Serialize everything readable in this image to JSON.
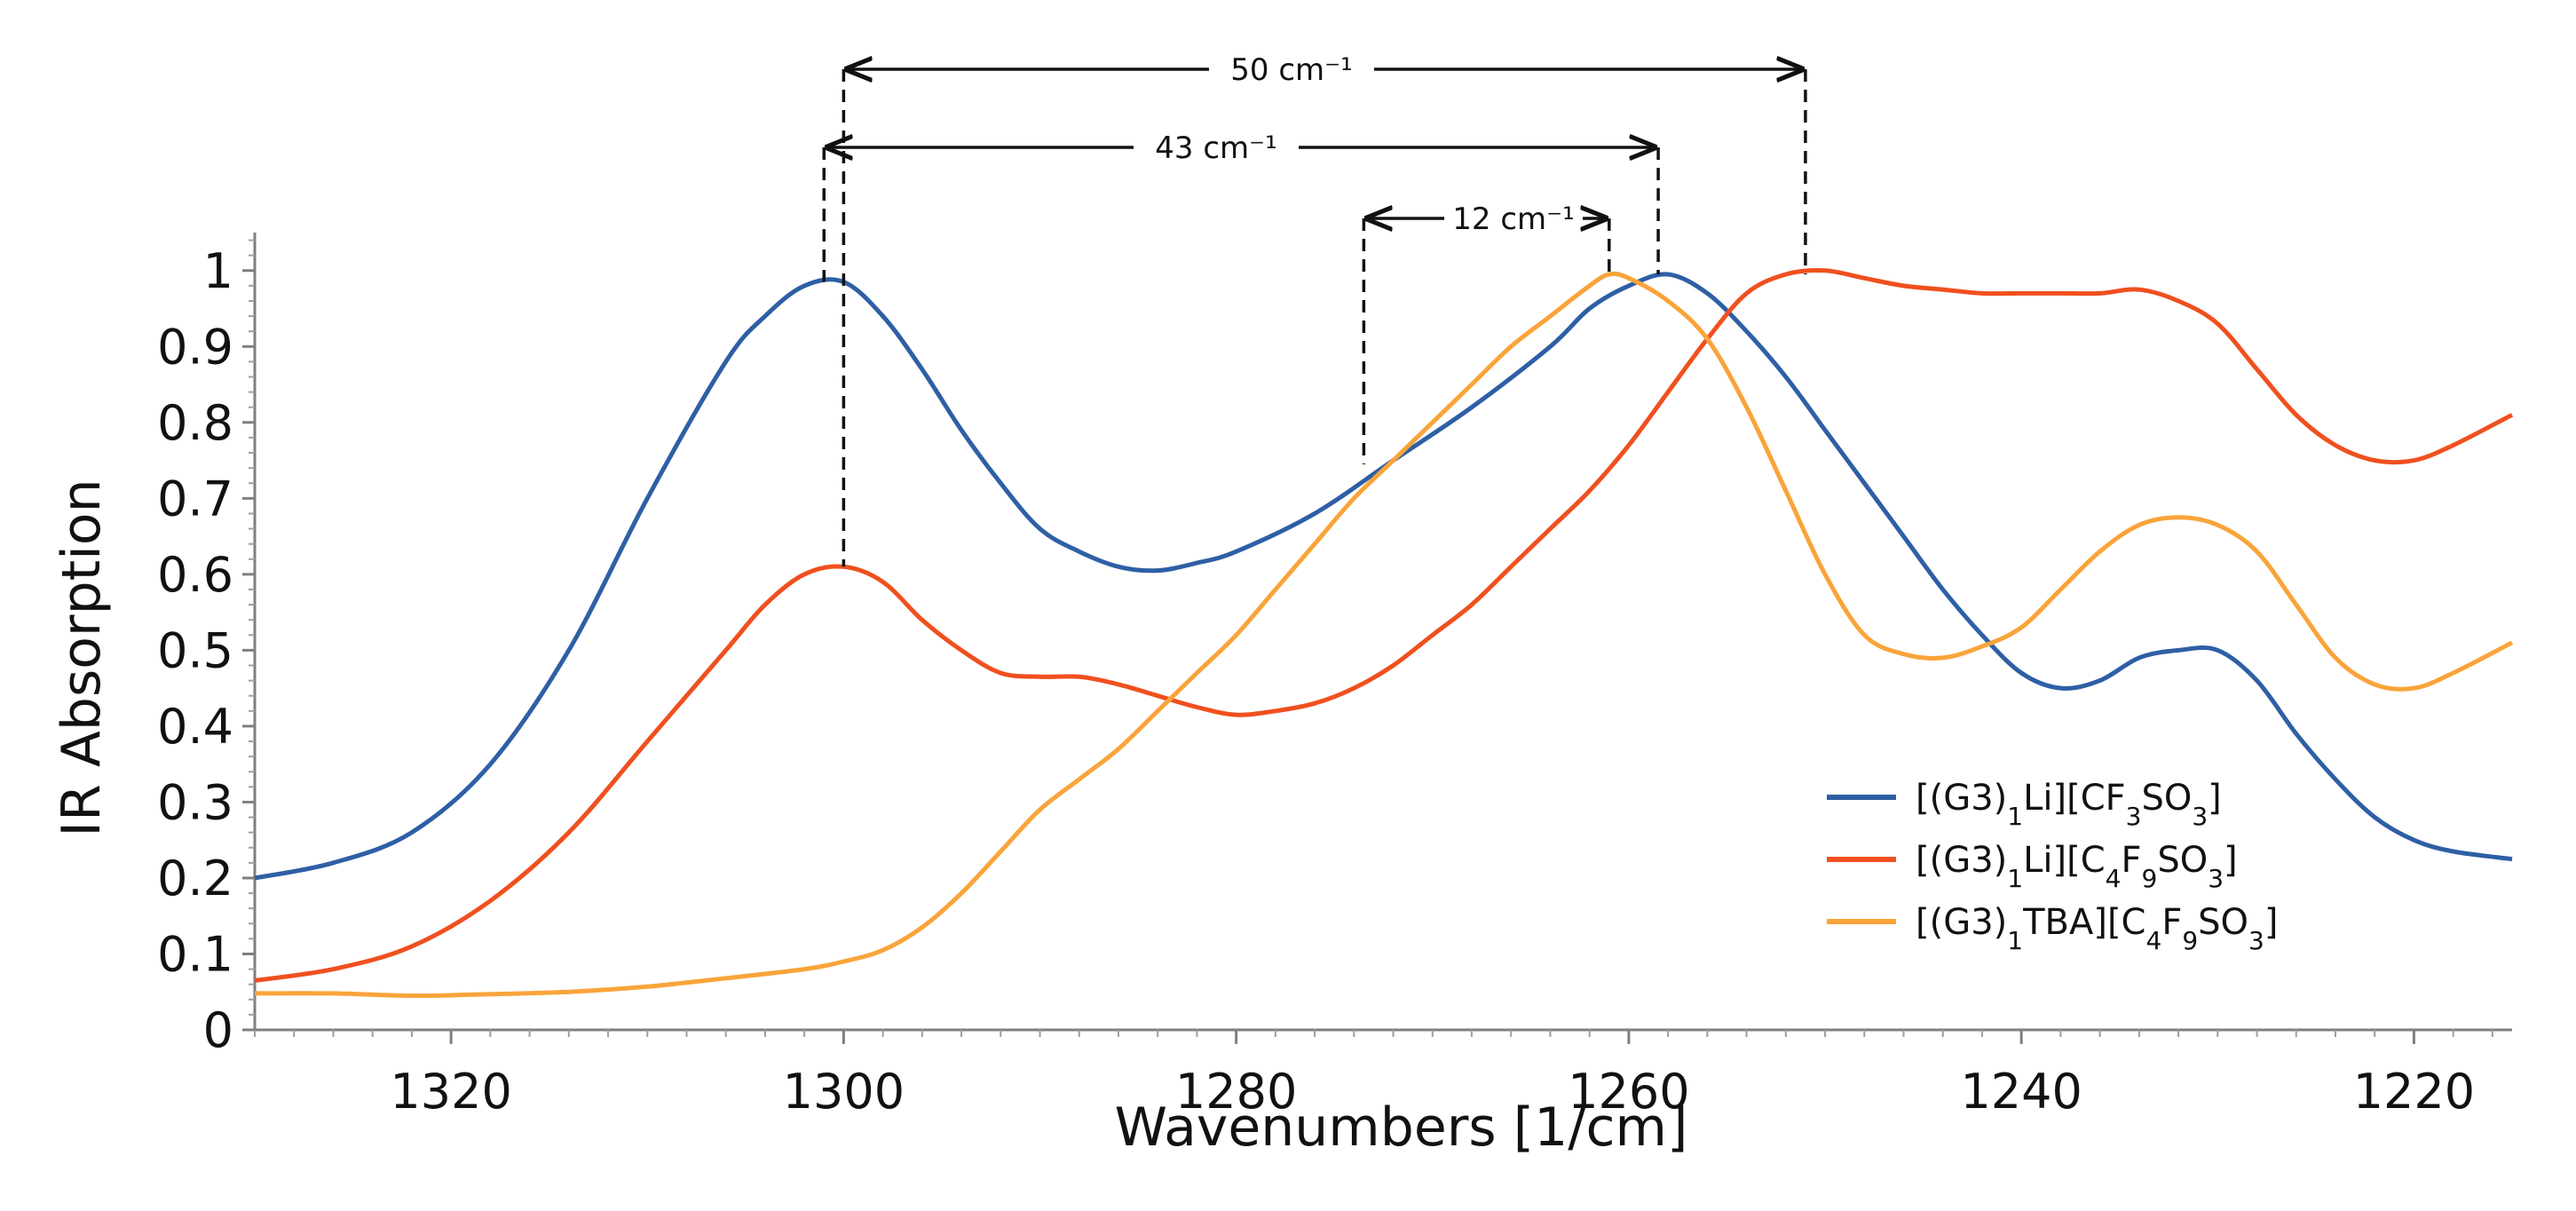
{
  "chart_data": {
    "type": "line",
    "title": "",
    "xlabel": "Wavenumbers [1/cm]",
    "ylabel": "IR Absorption",
    "xlim": [
      1330,
      1215
    ],
    "x_reversed": true,
    "ylim": [
      0,
      1.05
    ],
    "grid": false,
    "legend_position": "lower-right",
    "xticks": [
      1320,
      1300,
      1280,
      1260,
      1240,
      1220
    ],
    "yticks": [
      0,
      0.1,
      0.2,
      0.3,
      0.4,
      0.5,
      0.6,
      0.7,
      0.8,
      0.9,
      1
    ],
    "ytick_labels": [
      "0",
      "0.1",
      "0.2",
      "0.3",
      "0.4",
      "0.5",
      "0.6",
      "0.7",
      "0.8",
      "0.9",
      "1"
    ],
    "series": [
      {
        "name": "[(G3)1Li][CF3SO3]",
        "legend": {
          "base": "[(G3)",
          "sub1": "1",
          "mid": "Li][CF",
          "sub2": "3",
          "mid2": "SO",
          "sub3": "3",
          "end": "]"
        },
        "color": "#2E5FA5",
        "x": [
          1330,
          1326,
          1322,
          1318,
          1314,
          1310,
          1306,
          1304,
          1302,
          1300,
          1298,
          1296,
          1294,
          1292,
          1290,
          1288,
          1286,
          1284,
          1282,
          1280,
          1276,
          1272,
          1268,
          1264,
          1262,
          1260,
          1258,
          1256,
          1254,
          1252,
          1250,
          1248,
          1246,
          1244,
          1242,
          1240,
          1238,
          1236,
          1234,
          1232,
          1230,
          1228,
          1226,
          1224,
          1222,
          1220,
          1218,
          1215
        ],
        "y": [
          0.2,
          0.22,
          0.26,
          0.35,
          0.5,
          0.7,
          0.88,
          0.94,
          0.98,
          0.985,
          0.94,
          0.87,
          0.79,
          0.72,
          0.66,
          0.63,
          0.61,
          0.605,
          0.615,
          0.63,
          0.68,
          0.75,
          0.82,
          0.9,
          0.95,
          0.98,
          0.995,
          0.97,
          0.92,
          0.86,
          0.79,
          0.72,
          0.65,
          0.58,
          0.52,
          0.47,
          0.45,
          0.46,
          0.49,
          0.5,
          0.5,
          0.46,
          0.39,
          0.33,
          0.28,
          0.25,
          0.235,
          0.225
        ]
      },
      {
        "name": "[(G3)1Li][C4F9SO3]",
        "legend": {
          "base": "[(G3)",
          "sub1": "1",
          "mid": "Li][C",
          "sub2": "4",
          "mid2": "F",
          "sub3": "9",
          "mid3": "SO",
          "sub4": "3",
          "end": "]"
        },
        "color": "#F0501E",
        "x": [
          1330,
          1326,
          1322,
          1318,
          1314,
          1310,
          1306,
          1304,
          1302,
          1300,
          1298,
          1296,
          1294,
          1292,
          1290,
          1288,
          1286,
          1284,
          1282,
          1280,
          1278,
          1276,
          1274,
          1272,
          1270,
          1268,
          1266,
          1264,
          1262,
          1260,
          1258,
          1256,
          1254,
          1252,
          1250,
          1248,
          1246,
          1244,
          1242,
          1240,
          1238,
          1236,
          1234,
          1232,
          1230,
          1228,
          1226,
          1224,
          1222,
          1220,
          1218,
          1215
        ],
        "y": [
          0.065,
          0.08,
          0.11,
          0.17,
          0.26,
          0.38,
          0.5,
          0.56,
          0.6,
          0.61,
          0.59,
          0.54,
          0.5,
          0.47,
          0.465,
          0.465,
          0.455,
          0.44,
          0.425,
          0.415,
          0.42,
          0.43,
          0.45,
          0.48,
          0.52,
          0.56,
          0.61,
          0.66,
          0.71,
          0.77,
          0.84,
          0.91,
          0.97,
          0.995,
          1.0,
          0.99,
          0.98,
          0.975,
          0.97,
          0.97,
          0.97,
          0.97,
          0.975,
          0.96,
          0.93,
          0.87,
          0.81,
          0.77,
          0.75,
          0.75,
          0.77,
          0.81
        ]
      },
      {
        "name": "[(G3)1TBA][C4F9SO3]",
        "legend": {
          "base": "[(G3)",
          "sub1": "1",
          "mid": "TBA][C",
          "sub2": "4",
          "mid2": "F",
          "sub3": "9",
          "mid3": "SO",
          "sub4": "3",
          "end": "]"
        },
        "color": "#F9A43A",
        "x": [
          1330,
          1326,
          1322,
          1318,
          1314,
          1310,
          1306,
          1302,
          1300,
          1298,
          1296,
          1294,
          1292,
          1290,
          1288,
          1286,
          1284,
          1282,
          1280,
          1278,
          1276,
          1274,
          1272,
          1270,
          1268,
          1266,
          1264,
          1262,
          1261,
          1260,
          1258,
          1256,
          1254,
          1252,
          1250,
          1248,
          1246,
          1244,
          1242,
          1240,
          1238,
          1236,
          1234,
          1232,
          1230,
          1228,
          1226,
          1224,
          1222,
          1220,
          1218,
          1215
        ],
        "y": [
          0.048,
          0.048,
          0.045,
          0.047,
          0.05,
          0.057,
          0.068,
          0.08,
          0.09,
          0.105,
          0.135,
          0.18,
          0.235,
          0.29,
          0.33,
          0.37,
          0.42,
          0.47,
          0.52,
          0.58,
          0.64,
          0.7,
          0.75,
          0.8,
          0.85,
          0.9,
          0.94,
          0.98,
          0.995,
          0.99,
          0.96,
          0.91,
          0.82,
          0.71,
          0.6,
          0.52,
          0.495,
          0.49,
          0.505,
          0.53,
          0.58,
          0.63,
          0.665,
          0.675,
          0.665,
          0.63,
          0.56,
          0.49,
          0.455,
          0.45,
          0.47,
          0.51
        ]
      }
    ],
    "annotations": [
      {
        "label": "50 cm⁻¹",
        "from_x": 1300,
        "to_x": 1251,
        "arrows": "both"
      },
      {
        "label": "43 cm⁻¹",
        "from_x": 1301,
        "to_x": 1258.5,
        "arrows": "both"
      },
      {
        "label": "12 cm⁻¹",
        "from_x": 1273.5,
        "to_x": 1261,
        "arrows": "both"
      }
    ]
  }
}
